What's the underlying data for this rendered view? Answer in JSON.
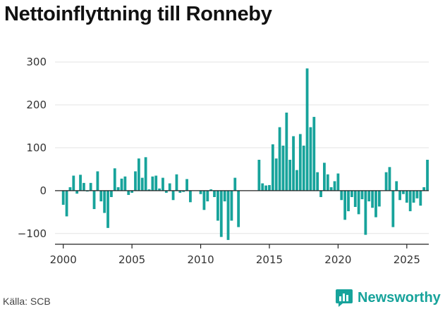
{
  "title": "Nettoinflyttning till Ronneby",
  "source": "Källa: SCB",
  "brand": {
    "name": "Newsworthy",
    "color": "#17a39b",
    "icon": "chart-bubble-icon"
  },
  "colors": {
    "bar": "#17a39b",
    "grid": "#e3e3e3",
    "axis": "#222222"
  },
  "chart_data": {
    "type": "bar",
    "title": "Nettoinflyttning till Ronneby",
    "xlabel": "",
    "ylabel": "",
    "xlim": [
      1999.4,
      2026.6
    ],
    "ylim": [
      -125,
      310
    ],
    "y_ticks": [
      -100,
      0,
      100,
      200,
      300
    ],
    "y_tick_labels": [
      "−100",
      "0",
      "100",
      "200",
      "300"
    ],
    "x_ticks": [
      2000,
      2005,
      2010,
      2015,
      2020,
      2025
    ],
    "x_tick_labels": [
      "2000",
      "2005",
      "2010",
      "2015",
      "2020",
      "2025"
    ],
    "grid": "horizontal",
    "legend": "none",
    "series": [
      {
        "start": 2000,
        "step": 0.25,
        "values": [
          -33,
          -60,
          8,
          35,
          -7,
          37,
          18,
          -2,
          18,
          -43,
          45,
          -25,
          -52,
          -87,
          -15,
          52,
          8,
          28,
          33,
          -10,
          -5,
          45,
          75,
          30,
          78,
          3,
          33,
          35,
          5,
          30,
          -5,
          17,
          -22,
          38,
          -5,
          -3,
          27,
          -27,
          0,
          0,
          -8,
          -45,
          -25,
          3,
          -15,
          -70,
          -108,
          -25,
          -115,
          -70,
          30,
          -85,
          0,
          0,
          0,
          0,
          0,
          72,
          17,
          12,
          13,
          108,
          75,
          148,
          105,
          182,
          72,
          127,
          48,
          132,
          105,
          285,
          148,
          172,
          43,
          -15,
          65,
          38,
          8,
          22,
          40,
          -22,
          -68,
          -48,
          -15,
          -38,
          -55,
          -20,
          -103,
          -25,
          -40,
          -62,
          -37,
          0,
          43,
          55,
          -85,
          22,
          -22,
          -8,
          -28,
          -48,
          -28,
          -18,
          -35,
          8,
          72
        ]
      }
    ]
  }
}
